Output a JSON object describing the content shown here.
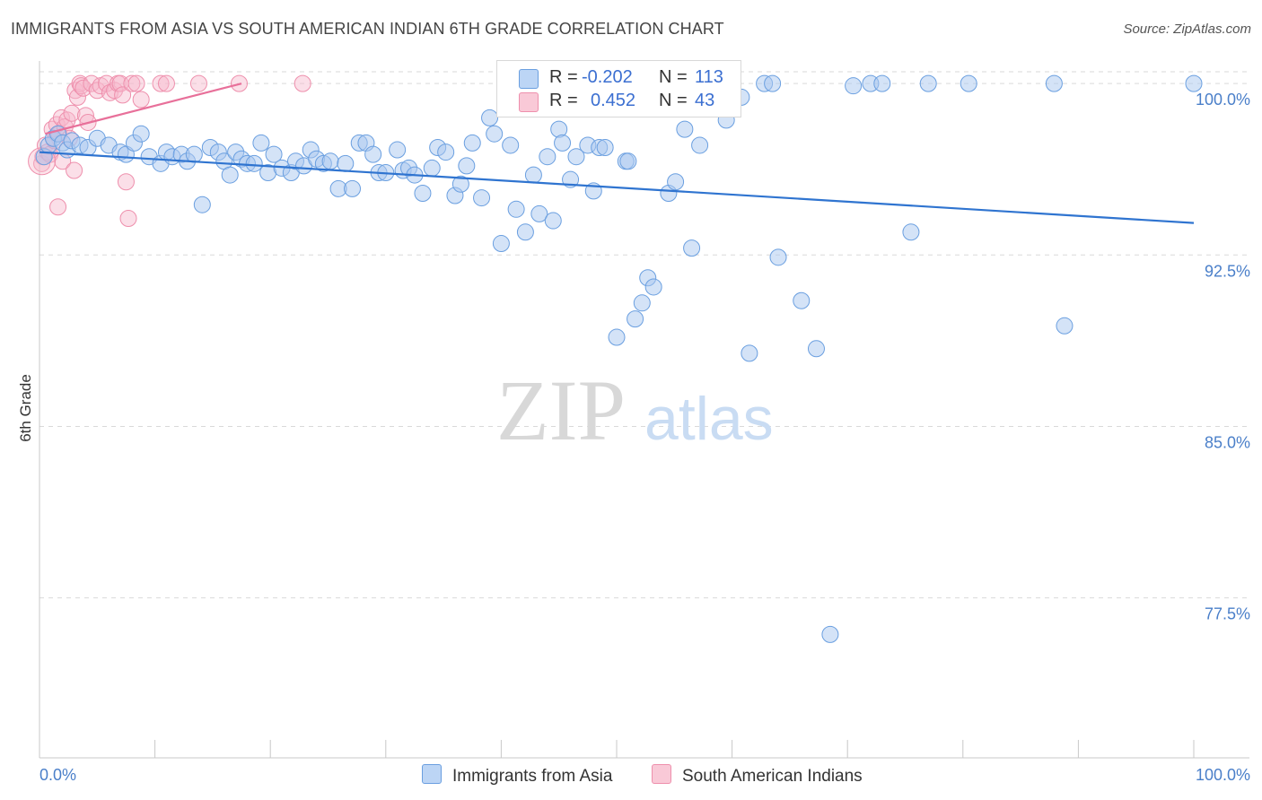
{
  "title": "IMMIGRANTS FROM ASIA VS SOUTH AMERICAN INDIAN 6TH GRADE CORRELATION CHART",
  "source": "Source: ZipAtlas.com",
  "watermark": {
    "zip": "ZIP",
    "atlas": "atlas"
  },
  "colors": {
    "blue_fill": "#a9c8f0",
    "blue_stroke": "#6a9fe0",
    "blue_line": "#2f74d0",
    "pink_fill": "#f7b8cb",
    "pink_stroke": "#ee8fac",
    "pink_line": "#e8709a",
    "tick_text": "#4a7fc9",
    "grid": "#d9d9d9"
  },
  "legend": {
    "r_label": "R =",
    "n_label": "N =",
    "rows": [
      {
        "series": "Immigrants from Asia",
        "r": "-0.202",
        "n": "113"
      },
      {
        "series": "South American Indians",
        "r": "0.452",
        "n": "43"
      }
    ]
  },
  "chart_data": {
    "type": "scatter",
    "title": "IMMIGRANTS FROM ASIA VS SOUTH AMERICAN INDIAN 6TH GRADE CORRELATION CHART",
    "xlabel": "",
    "ylabel": "6th Grade",
    "xlim": [
      0,
      100
    ],
    "ylim": [
      70.5,
      101.3
    ],
    "x_tick_labels": [
      "0.0%",
      "100.0%"
    ],
    "y_ticks": [
      77.5,
      85.0,
      92.5,
      100.0
    ],
    "y_tick_labels": [
      "77.5%",
      "85.0%",
      "92.5%",
      "100.0%"
    ],
    "grid": true,
    "legend_position": "bottom",
    "series": [
      {
        "name": "Immigrants from Asia",
        "color": "#6a9fe0",
        "trendline": {
          "x": [
            0,
            100
          ],
          "y": [
            97.0,
            93.9
          ]
        },
        "points": [
          [
            0.4,
            96.8
          ],
          [
            0.8,
            97.3
          ],
          [
            1.2,
            97.6
          ],
          [
            1.6,
            97.8
          ],
          [
            2.0,
            97.4
          ],
          [
            2.4,
            97.1
          ],
          [
            2.8,
            97.5
          ],
          [
            3.5,
            97.3
          ],
          [
            4.2,
            97.2
          ],
          [
            5.0,
            97.6
          ],
          [
            6.0,
            97.3
          ],
          [
            7.0,
            97.0
          ],
          [
            7.5,
            96.9
          ],
          [
            8.2,
            97.4
          ],
          [
            8.8,
            97.8
          ],
          [
            9.5,
            96.8
          ],
          [
            10.5,
            96.5
          ],
          [
            11.0,
            97.0
          ],
          [
            11.5,
            96.8
          ],
          [
            12.3,
            96.9
          ],
          [
            12.8,
            96.6
          ],
          [
            13.4,
            96.9
          ],
          [
            14.1,
            94.7
          ],
          [
            14.8,
            97.2
          ],
          [
            15.5,
            97.0
          ],
          [
            16.0,
            96.6
          ],
          [
            16.5,
            96.0
          ],
          [
            17.0,
            97.0
          ],
          [
            17.5,
            96.7
          ],
          [
            18.0,
            96.5
          ],
          [
            18.6,
            96.5
          ],
          [
            19.2,
            97.4
          ],
          [
            19.8,
            96.1
          ],
          [
            20.3,
            96.9
          ],
          [
            21.0,
            96.3
          ],
          [
            21.8,
            96.1
          ],
          [
            22.2,
            96.6
          ],
          [
            22.9,
            96.4
          ],
          [
            23.5,
            97.1
          ],
          [
            24.0,
            96.7
          ],
          [
            24.6,
            96.5
          ],
          [
            25.2,
            96.6
          ],
          [
            25.9,
            95.4
          ],
          [
            26.5,
            96.5
          ],
          [
            27.1,
            95.4
          ],
          [
            27.7,
            97.4
          ],
          [
            28.3,
            97.4
          ],
          [
            28.9,
            96.9
          ],
          [
            29.4,
            96.1
          ],
          [
            30.0,
            96.1
          ],
          [
            31.0,
            97.1
          ],
          [
            31.5,
            96.2
          ],
          [
            32.0,
            96.3
          ],
          [
            32.5,
            96.0
          ],
          [
            33.2,
            95.2
          ],
          [
            34.0,
            96.3
          ],
          [
            34.5,
            97.2
          ],
          [
            35.2,
            97.0
          ],
          [
            36.0,
            95.1
          ],
          [
            36.5,
            95.6
          ],
          [
            37.0,
            96.4
          ],
          [
            37.5,
            97.4
          ],
          [
            38.3,
            95.0
          ],
          [
            39.0,
            98.5
          ],
          [
            39.4,
            97.8
          ],
          [
            40.0,
            93.0
          ],
          [
            40.8,
            97.3
          ],
          [
            41.3,
            94.5
          ],
          [
            42.1,
            93.5
          ],
          [
            42.8,
            96.0
          ],
          [
            43.3,
            94.3
          ],
          [
            44.0,
            96.8
          ],
          [
            44.5,
            94.0
          ],
          [
            45.0,
            98.0
          ],
          [
            45.3,
            97.4
          ],
          [
            46.0,
            95.8
          ],
          [
            46.5,
            96.8
          ],
          [
            47.5,
            97.3
          ],
          [
            48.0,
            95.3
          ],
          [
            48.5,
            97.2
          ],
          [
            49.0,
            97.2
          ],
          [
            50.0,
            88.9
          ],
          [
            50.8,
            96.6
          ],
          [
            51.0,
            96.6
          ],
          [
            51.6,
            89.7
          ],
          [
            52.2,
            90.4
          ],
          [
            52.7,
            91.5
          ],
          [
            53.2,
            91.1
          ],
          [
            53.8,
            99.0
          ],
          [
            54.1,
            99.1
          ],
          [
            54.5,
            95.2
          ],
          [
            55.1,
            95.7
          ],
          [
            55.9,
            98.0
          ],
          [
            56.5,
            92.8
          ],
          [
            57.2,
            97.3
          ],
          [
            59.5,
            98.4
          ],
          [
            60.8,
            99.4
          ],
          [
            61.5,
            88.2
          ],
          [
            62.8,
            100.0
          ],
          [
            63.5,
            100.0
          ],
          [
            64.0,
            92.4
          ],
          [
            66.0,
            90.5
          ],
          [
            67.3,
            88.4
          ],
          [
            68.5,
            75.9
          ],
          [
            70.5,
            99.9
          ],
          [
            72.0,
            100.0
          ],
          [
            73.0,
            100.0
          ],
          [
            75.5,
            93.5
          ],
          [
            77.0,
            100.0
          ],
          [
            80.5,
            100.0
          ],
          [
            87.9,
            100.0
          ],
          [
            88.8,
            89.4
          ],
          [
            100.0,
            100.0
          ]
        ]
      },
      {
        "name": "South American Indians",
        "color": "#ee8fac",
        "trendline": {
          "x": [
            0.5,
            17.5
          ],
          "y": [
            97.8,
            100.0
          ]
        },
        "points": [
          [
            0.2,
            96.5
          ],
          [
            0.3,
            96.8
          ],
          [
            0.5,
            97.3
          ],
          [
            0.7,
            97.0
          ],
          [
            0.9,
            96.9
          ],
          [
            1.1,
            98.0
          ],
          [
            1.3,
            97.5
          ],
          [
            1.5,
            98.2
          ],
          [
            1.6,
            94.6
          ],
          [
            1.7,
            97.8
          ],
          [
            1.9,
            98.5
          ],
          [
            2.0,
            96.6
          ],
          [
            2.2,
            98.1
          ],
          [
            2.4,
            98.4
          ],
          [
            2.6,
            97.6
          ],
          [
            2.8,
            98.7
          ],
          [
            3.0,
            96.2
          ],
          [
            3.1,
            99.7
          ],
          [
            3.3,
            99.4
          ],
          [
            3.5,
            100.0
          ],
          [
            3.6,
            99.9
          ],
          [
            3.8,
            99.8
          ],
          [
            4.0,
            98.6
          ],
          [
            4.2,
            98.3
          ],
          [
            4.5,
            100.0
          ],
          [
            5.0,
            99.7
          ],
          [
            5.3,
            99.9
          ],
          [
            5.8,
            100.0
          ],
          [
            6.1,
            99.6
          ],
          [
            6.5,
            99.7
          ],
          [
            6.8,
            100.0
          ],
          [
            7.0,
            100.0
          ],
          [
            7.2,
            99.5
          ],
          [
            7.5,
            95.7
          ],
          [
            7.7,
            94.1
          ],
          [
            8.0,
            100.0
          ],
          [
            8.4,
            100.0
          ],
          [
            8.8,
            99.3
          ],
          [
            10.5,
            100.0
          ],
          [
            11.0,
            100.0
          ],
          [
            13.8,
            100.0
          ],
          [
            17.3,
            100.0
          ],
          [
            22.8,
            100.0
          ]
        ]
      }
    ]
  }
}
